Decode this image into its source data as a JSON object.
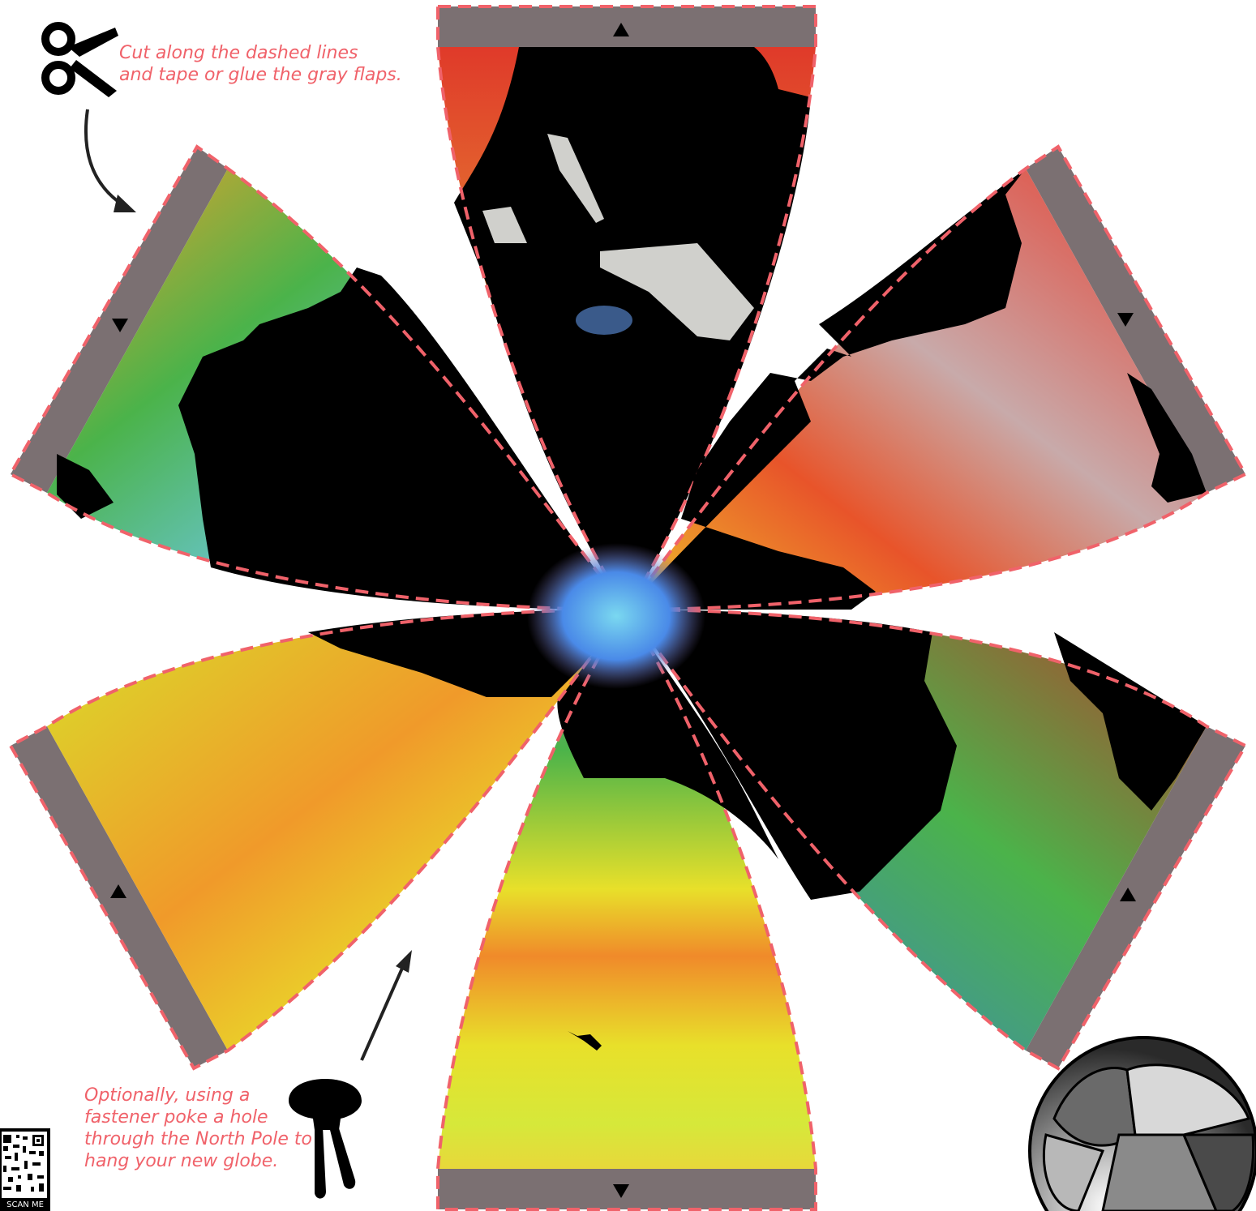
{
  "instructions": {
    "cut_text": "Cut along the dashed lines\nand tape or glue the gray flaps.",
    "hang_text": "Optionally, using a\nfastener poke a hole\nthrough the North Pole to\nhang your new globe."
  },
  "qr": {
    "label": "SCAN ME"
  },
  "colors": {
    "accent": "#f0626a",
    "flap": "#7b7072",
    "land": "#000000",
    "ice": "#d0d0cc"
  },
  "icons": {
    "cut": "scissors-icon",
    "hang": "pushpin-icon",
    "arrow": "arrow-icon",
    "flap_marker": "triangle-icon",
    "preview": "assembled-globe-icon",
    "code": "qr-code-icon"
  },
  "gores": [
    {
      "name": "top-gore",
      "flap_marker": "up"
    },
    {
      "name": "upper-right-gore",
      "flap_marker": "down"
    },
    {
      "name": "lower-right-gore",
      "flap_marker": "up"
    },
    {
      "name": "bottom-gore",
      "flap_marker": "down"
    },
    {
      "name": "lower-left-gore",
      "flap_marker": "up"
    },
    {
      "name": "upper-left-gore",
      "flap_marker": "down"
    }
  ]
}
